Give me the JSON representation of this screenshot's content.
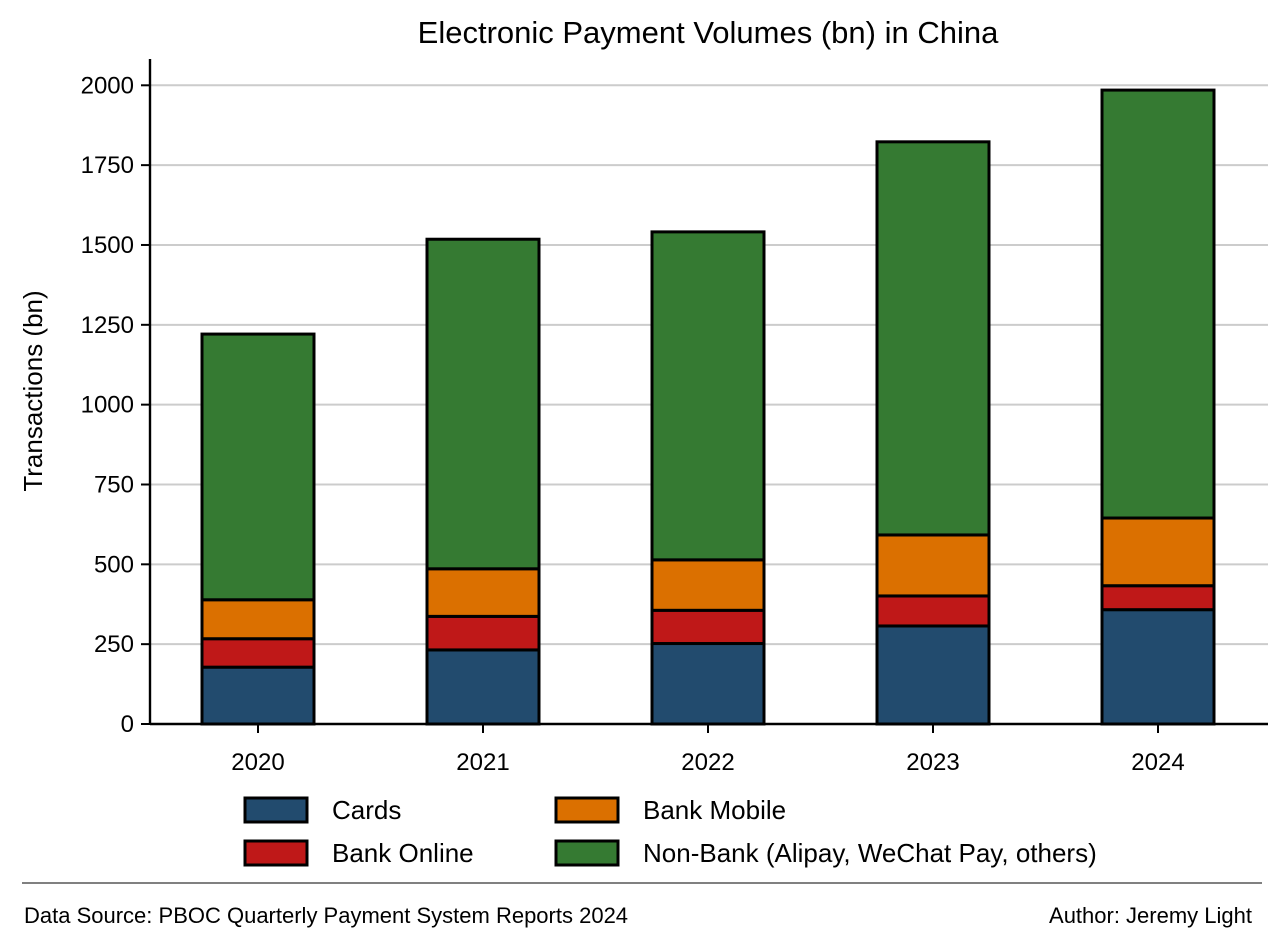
{
  "chart_data": {
    "type": "bar",
    "stacked": true,
    "title": "Electronic Payment Volumes (bn) in China",
    "ylabel": "Transactions (bn)",
    "xlabel": "",
    "categories": [
      "2020",
      "2021",
      "2022",
      "2023",
      "2024"
    ],
    "ylim": [
      0,
      2080
    ],
    "yticks": [
      0,
      250,
      500,
      750,
      1000,
      1250,
      1500,
      1750,
      2000
    ],
    "grid": "horizontal",
    "legend_placement": "bottom",
    "series": [
      {
        "name": "Cards",
        "color": "#224b6e",
        "values": [
          178,
          232,
          252,
          307,
          358
        ]
      },
      {
        "name": "Bank Online",
        "color": "#bf1818",
        "values": [
          89,
          105,
          104,
          94,
          75
        ]
      },
      {
        "name": "Bank Mobile",
        "color": "#db7000",
        "values": [
          122,
          149,
          158,
          191,
          212
        ]
      },
      {
        "name": "Non-Bank (Alipay, WeChat Pay, others)",
        "color": "#357a32",
        "values": [
          832,
          1032,
          1027,
          1231,
          1340
        ]
      }
    ]
  },
  "footer": {
    "source": "Data Source: PBOC Quarterly Payment System Reports 2024",
    "author": "Author: Jeremy Light"
  }
}
